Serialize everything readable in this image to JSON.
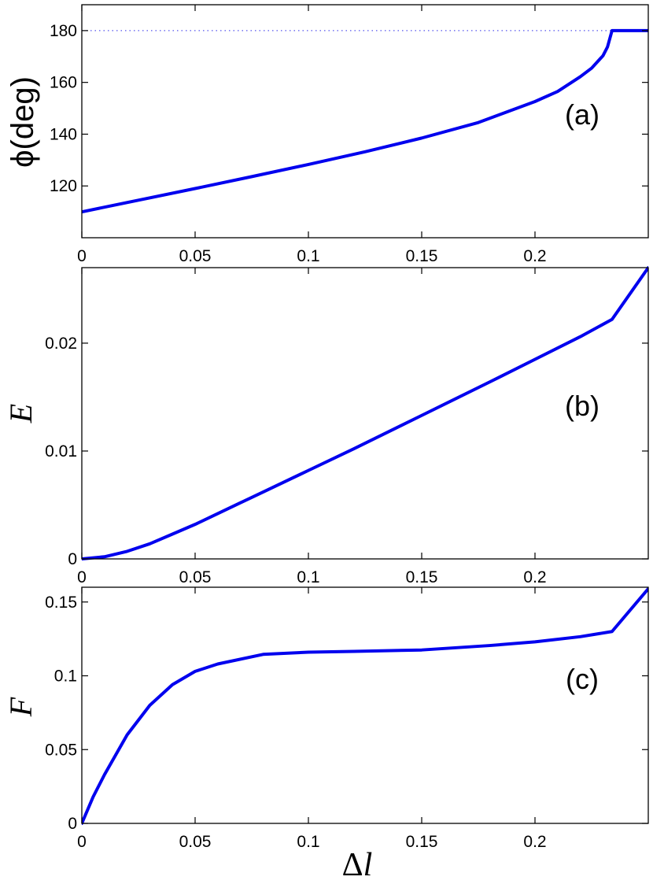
{
  "chart_data": [
    {
      "panel": "a",
      "type": "line",
      "panel_label": "(a)",
      "ylabel": "ϕ(deg)",
      "xlabel": "",
      "xlim": [
        0,
        0.25
      ],
      "ylim": [
        100,
        190
      ],
      "xticks": [
        0,
        0.05,
        0.1,
        0.15,
        0.2
      ],
      "xtick_labels": [
        "0",
        "0.05",
        "0.1",
        "0.15",
        "0.2"
      ],
      "yticks": [
        120,
        140,
        160,
        180
      ],
      "ytick_labels": [
        "120",
        "140",
        "160",
        "180"
      ],
      "reference_line": {
        "y": 180,
        "style": "dotted"
      },
      "series": [
        {
          "color": "#0000ee",
          "x": [
            0,
            0.025,
            0.05,
            0.075,
            0.1,
            0.125,
            0.15,
            0.175,
            0.2,
            0.21,
            0.22,
            0.225,
            0.23,
            0.232,
            0.234,
            0.236,
            0.25
          ],
          "y": [
            110,
            114.5,
            119,
            123.6,
            128.3,
            133.2,
            138.5,
            144.5,
            152.6,
            156.5,
            162.2,
            165.5,
            170.3,
            173.7,
            180,
            180,
            180
          ]
        }
      ]
    },
    {
      "panel": "b",
      "type": "line",
      "panel_label": "(b)",
      "ylabel": "E",
      "xlabel": "",
      "xlim": [
        0,
        0.25
      ],
      "ylim": [
        0,
        0.027
      ],
      "xticks": [
        0,
        0.05,
        0.1,
        0.15,
        0.2
      ],
      "xtick_labels": [
        "0",
        "0.05",
        "0.1",
        "0.15",
        "0.2"
      ],
      "yticks": [
        0,
        0.01,
        0.02
      ],
      "ytick_labels": [
        "0",
        "0.01",
        "0.02"
      ],
      "series": [
        {
          "color": "#0000ee",
          "x": [
            0,
            0.01,
            0.02,
            0.03,
            0.04,
            0.05,
            0.06,
            0.07,
            0.08,
            0.1,
            0.12,
            0.15,
            0.18,
            0.2,
            0.22,
            0.234,
            0.25
          ],
          "y": [
            0,
            0.0002,
            0.0007,
            0.0014,
            0.0023,
            0.0032,
            0.0042,
            0.0052,
            0.0062,
            0.0082,
            0.0102,
            0.0133,
            0.0164,
            0.0185,
            0.0206,
            0.0222,
            0.027
          ]
        }
      ]
    },
    {
      "panel": "c",
      "type": "line",
      "panel_label": "(c)",
      "ylabel": "F",
      "xlabel": "Δl",
      "xlim": [
        0,
        0.25
      ],
      "ylim": [
        0,
        0.16
      ],
      "xticks": [
        0,
        0.05,
        0.1,
        0.15,
        0.2
      ],
      "xtick_labels": [
        "0",
        "0.05",
        "0.1",
        "0.15",
        "0.2"
      ],
      "yticks": [
        0,
        0.05,
        0.1,
        0.15
      ],
      "ytick_labels": [
        "0",
        "0.05",
        "0.1",
        "0.15"
      ],
      "series": [
        {
          "color": "#0000ee",
          "x": [
            0,
            0.005,
            0.01,
            0.02,
            0.03,
            0.04,
            0.05,
            0.06,
            0.08,
            0.1,
            0.12,
            0.15,
            0.18,
            0.2,
            0.22,
            0.234,
            0.25
          ],
          "y": [
            0,
            0.018,
            0.033,
            0.06,
            0.08,
            0.094,
            0.103,
            0.108,
            0.1145,
            0.116,
            0.1165,
            0.1175,
            0.1205,
            0.123,
            0.1265,
            0.13,
            0.159
          ]
        }
      ]
    }
  ]
}
